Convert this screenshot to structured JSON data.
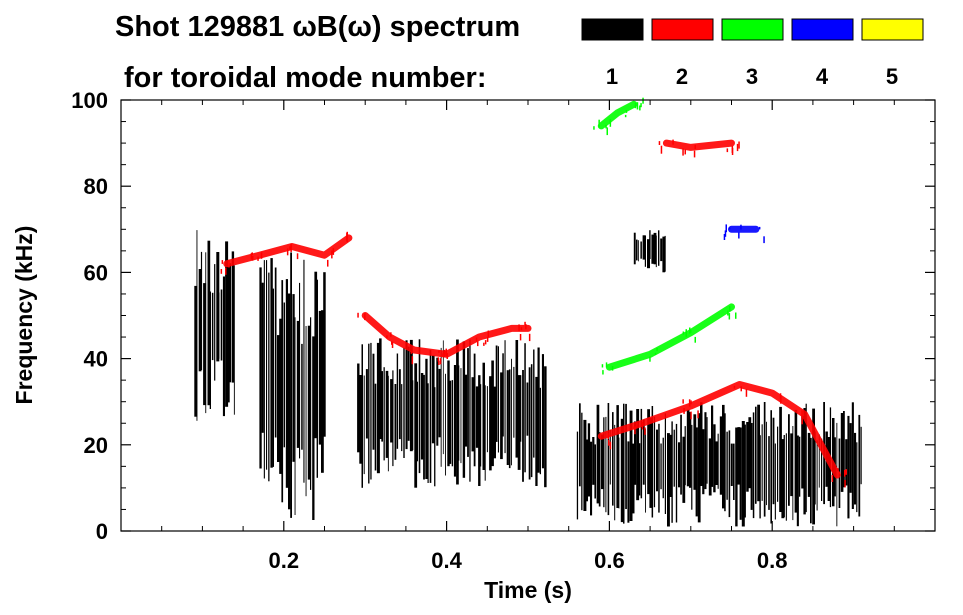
{
  "title_line1": "Shot 129881 ωB(ω) spectrum",
  "title_line2": "for toroidal mode number:",
  "chart_data": {
    "type": "heatmap",
    "xlabel": "Time (s)",
    "ylabel": "Frequency (kHz)",
    "xlim": [
      0.0,
      1.0
    ],
    "ylim": [
      0,
      100
    ],
    "x_ticks": [
      0.2,
      0.4,
      0.6,
      0.8
    ],
    "x_tick_labels": [
      "0.2",
      "0.4",
      "0.6",
      "0.8"
    ],
    "y_ticks": [
      0,
      20,
      40,
      60,
      80,
      100
    ],
    "y_tick_labels": [
      "0",
      "20",
      "40",
      "60",
      "80",
      "100"
    ],
    "legend": [
      {
        "label": "1",
        "color": "#000000"
      },
      {
        "label": "2",
        "color": "#ff0000"
      },
      {
        "label": "3",
        "color": "#00ff00"
      },
      {
        "label": "4",
        "color": "#0000ff"
      },
      {
        "label": "5",
        "color": "#ffff00"
      }
    ],
    "legend_placement": "top-right",
    "series": [
      {
        "name": "n=1",
        "color": "#000000",
        "regions": [
          {
            "t": [
              0.09,
              0.14
            ],
            "f": [
              25,
              70
            ]
          },
          {
            "t": [
              0.17,
              0.25
            ],
            "f": [
              2,
              65
            ]
          },
          {
            "t": [
              0.29,
              0.52
            ],
            "f": [
              10,
              45
            ]
          },
          {
            "t": [
              0.56,
              0.91
            ],
            "f": [
              1,
              30
            ]
          },
          {
            "t": [
              0.63,
              0.67
            ],
            "f": [
              60,
              70
            ]
          }
        ]
      },
      {
        "name": "n=2",
        "color": "#ff0000",
        "traces": [
          {
            "t": [
              0.13,
              0.17,
              0.21,
              0.25,
              0.28
            ],
            "f": [
              62,
              64,
              66,
              64,
              68
            ]
          },
          {
            "t": [
              0.3,
              0.33,
              0.36,
              0.4,
              0.44,
              0.48,
              0.5
            ],
            "f": [
              50,
              45,
              42,
              41,
              45,
              47,
              47
            ]
          },
          {
            "t": [
              0.59,
              0.64,
              0.7,
              0.76,
              0.8,
              0.84,
              0.88
            ],
            "f": [
              22,
              25,
              29,
              34,
              32,
              27,
              13
            ]
          },
          {
            "t": [
              0.67,
              0.7,
              0.75
            ],
            "f": [
              90,
              89,
              90
            ]
          }
        ]
      },
      {
        "name": "n=3",
        "color": "#00ff00",
        "traces": [
          {
            "t": [
              0.59,
              0.61,
              0.63
            ],
            "f": [
              94,
              97,
              99
            ]
          },
          {
            "t": [
              0.6,
              0.65,
              0.7,
              0.75
            ],
            "f": [
              38,
              41,
              46,
              52
            ]
          }
        ]
      },
      {
        "name": "n=4",
        "color": "#0000ff",
        "traces": [
          {
            "t": [
              0.75,
              0.78
            ],
            "f": [
              70,
              70
            ]
          }
        ]
      },
      {
        "name": "n=5",
        "color": "#ffff00",
        "traces": []
      }
    ]
  }
}
